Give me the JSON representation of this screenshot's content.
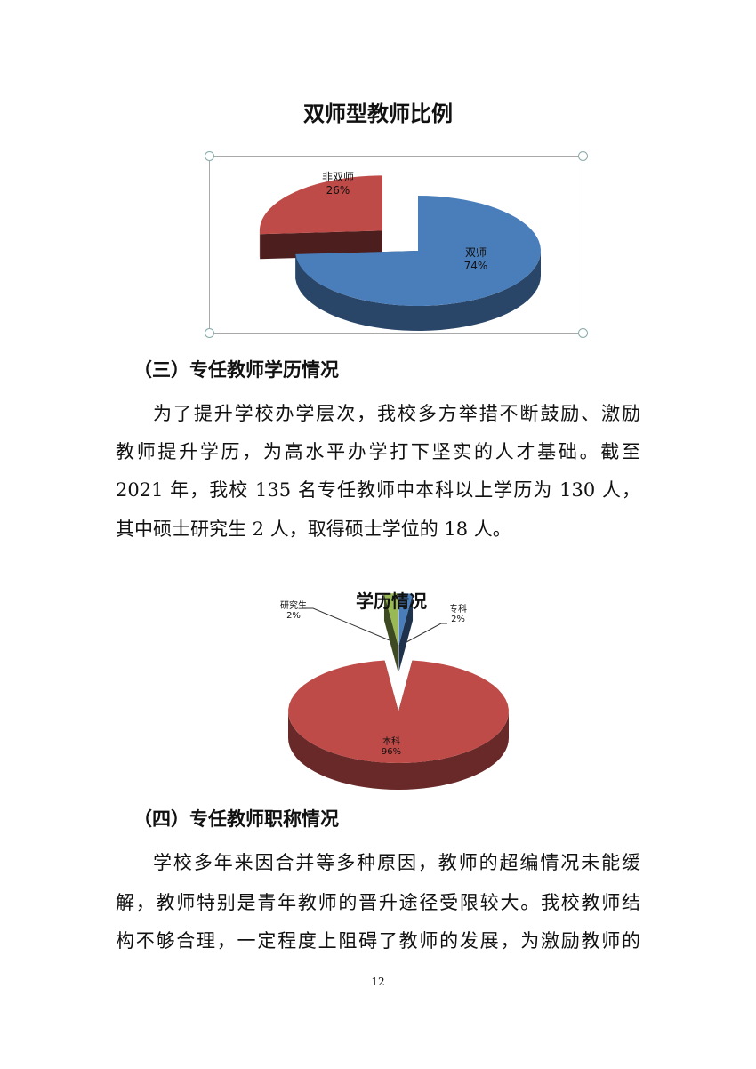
{
  "chart1": {
    "title": "双师型教师比例",
    "labels": [
      {
        "name": "双师",
        "pct": "74%"
      },
      {
        "name": "非双师",
        "pct": "26%"
      }
    ]
  },
  "section3": {
    "heading": "（三）专任教师学历情况",
    "lines": [
      "为了提升学校办学层次，我校多方举措不断鼓励、激励",
      "教师提升学历，为高水平办学打下坚实的人才基础。截至",
      "2021 年，我校 135 名专任教师中本科以上学历为 130 人，",
      "其中硕士研究生 2 人，取得硕士学位的 18 人。"
    ]
  },
  "chart2": {
    "title": "学历情况",
    "labels": [
      {
        "name": "本科",
        "pct": "96%"
      },
      {
        "name": "研究生",
        "pct": "2%"
      },
      {
        "name": "专科",
        "pct": "2%"
      }
    ]
  },
  "section4": {
    "heading": "（四）专任教师职称情况",
    "lines": [
      "学校多年来因合并等多种原因，教师的超编情况未能缓",
      "解，教师特别是青年教师的晋升途径受限较大。我校教师结",
      "构不够合理，一定程度上阻碍了教师的发展，为激励教师的"
    ]
  },
  "page_number": "12",
  "chart_data": [
    {
      "type": "pie",
      "title": "双师型教师比例",
      "categories": [
        "双师",
        "非双师"
      ],
      "values": [
        74,
        26
      ],
      "colors": [
        "#4a7ebb",
        "#be4b48"
      ]
    },
    {
      "type": "pie",
      "title": "学历情况",
      "categories": [
        "专科",
        "本科",
        "研究生"
      ],
      "values": [
        2,
        96,
        2
      ],
      "colors": [
        "#4a7ebb",
        "#be4b48",
        "#98b954"
      ]
    }
  ]
}
